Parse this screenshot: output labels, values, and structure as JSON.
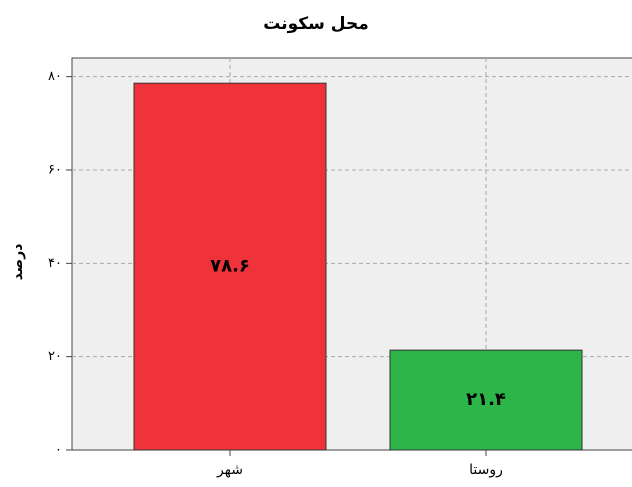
{
  "chart_data": {
    "type": "bar",
    "title": "محل سکونت",
    "y_label": "درصد",
    "categories": [
      "شهر",
      "روستا"
    ],
    "values": [
      78.6,
      21.4
    ],
    "value_labels": [
      "۷۸.۶",
      "۲۱.۴"
    ],
    "colors": [
      "#f0333a",
      "#2db54a"
    ],
    "ylim": [
      0,
      84
    ],
    "yticks": [
      {
        "value": 0,
        "label": "۰"
      },
      {
        "value": 20,
        "label": "۲۰"
      },
      {
        "value": 40,
        "label": "۴۰"
      },
      {
        "value": 60,
        "label": "۶۰"
      },
      {
        "value": 80,
        "label": "۸۰"
      }
    ],
    "grid": true
  }
}
